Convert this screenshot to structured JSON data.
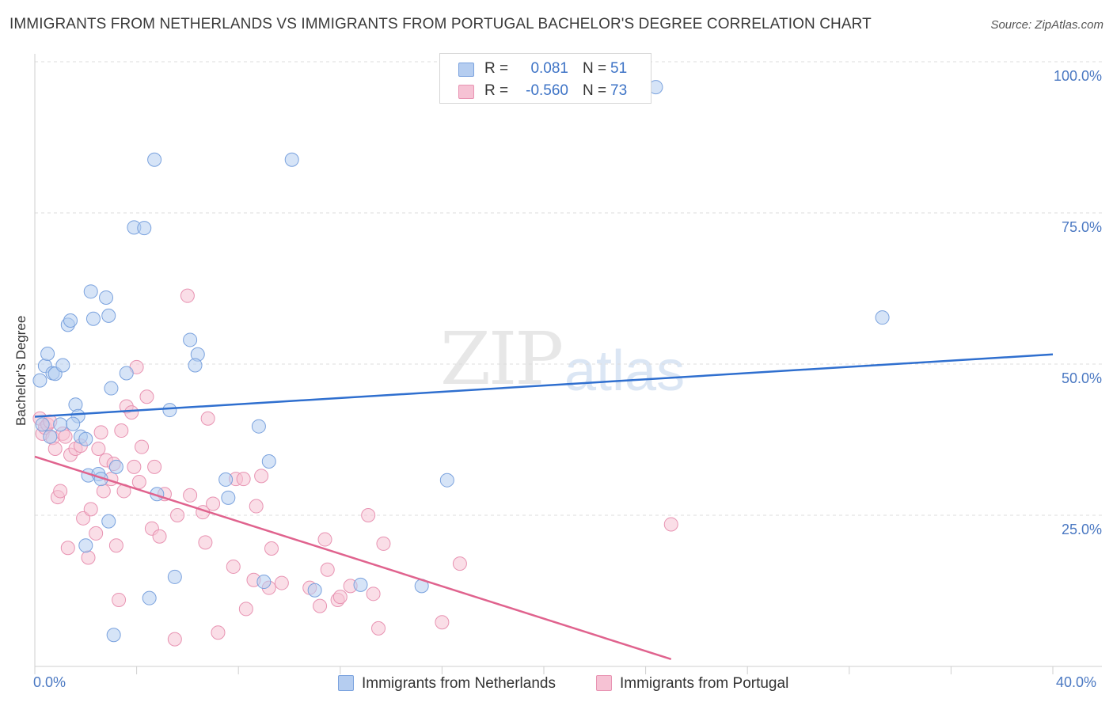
{
  "title": "IMMIGRANTS FROM NETHERLANDS VS IMMIGRANTS FROM PORTUGAL BACHELOR'S DEGREE CORRELATION CHART",
  "source": "Source: ZipAtlas.com",
  "watermark": {
    "zip": "ZIP",
    "atlas": "atlas"
  },
  "legend_top": {
    "rows": [
      {
        "r_label": "R =",
        "r_value": "0.081",
        "n_label": "N =",
        "n_value": "51"
      },
      {
        "r_label": "R =",
        "r_value": "-0.560",
        "n_label": "N =",
        "n_value": "73"
      }
    ]
  },
  "legend_bottom": {
    "items": [
      "Immigrants from Netherlands",
      "Immigrants from Portugal"
    ]
  },
  "colors": {
    "netherlands_fill": "#b5cdf0",
    "netherlands_stroke": "#7aa2de",
    "netherlands_line": "#2f6fcf",
    "portugal_fill": "#f6c2d4",
    "portugal_stroke": "#e893b2",
    "portugal_line": "#e0638e",
    "tick_text": "#4a78c2"
  },
  "chart_data": {
    "type": "scatter",
    "ylabel": "Bachelor's Degree",
    "xlim": [
      0,
      40
    ],
    "ylim": [
      0,
      100
    ],
    "x_ticks": [
      "0.0%",
      "40.0%"
    ],
    "y_ticks": [
      {
        "value": 100,
        "label": "100.0%"
      },
      {
        "value": 75,
        "label": "75.0%"
      },
      {
        "value": 50,
        "label": "50.0%"
      },
      {
        "value": 25,
        "label": "25.0%"
      }
    ],
    "grid": true,
    "series": [
      {
        "name": "Immigrants from Netherlands",
        "trend": {
          "x": [
            0,
            40
          ],
          "y": [
            41.3,
            51.6
          ]
        },
        "points": [
          [
            0.2,
            47.3
          ],
          [
            0.4,
            49.7
          ],
          [
            0.5,
            51.7
          ],
          [
            0.7,
            48.5
          ],
          [
            0.8,
            48.4
          ],
          [
            1.1,
            49.8
          ],
          [
            1.3,
            56.5
          ],
          [
            1.4,
            57.2
          ],
          [
            1.6,
            43.3
          ],
          [
            1.7,
            41.4
          ],
          [
            1.8,
            38.0
          ],
          [
            2.0,
            37.6
          ],
          [
            2.1,
            31.6
          ],
          [
            2.2,
            62.0
          ],
          [
            2.3,
            57.5
          ],
          [
            2.5,
            31.8
          ],
          [
            2.6,
            31.0
          ],
          [
            2.8,
            61.0
          ],
          [
            2.9,
            58.0
          ],
          [
            3.0,
            46.0
          ],
          [
            3.2,
            33.0
          ],
          [
            3.6,
            48.5
          ],
          [
            3.9,
            72.6
          ],
          [
            4.3,
            72.5
          ],
          [
            4.7,
            83.8
          ],
          [
            4.8,
            28.5
          ],
          [
            5.3,
            42.4
          ],
          [
            6.1,
            54.0
          ],
          [
            6.4,
            51.6
          ],
          [
            6.3,
            49.8
          ],
          [
            7.5,
            30.9
          ],
          [
            7.6,
            27.9
          ],
          [
            8.8,
            39.7
          ],
          [
            9.2,
            33.9
          ],
          [
            10.1,
            83.8
          ],
          [
            11.0,
            12.6
          ],
          [
            12.8,
            13.5
          ],
          [
            15.2,
            13.3
          ],
          [
            16.2,
            30.8
          ],
          [
            24.4,
            95.8
          ],
          [
            33.3,
            57.7
          ],
          [
            0.3,
            40.0
          ],
          [
            1.0,
            40.0
          ],
          [
            1.5,
            40.1
          ],
          [
            2.9,
            24.0
          ],
          [
            4.5,
            11.3
          ],
          [
            5.5,
            14.8
          ],
          [
            3.1,
            5.2
          ],
          [
            9.0,
            14.0
          ],
          [
            0.6,
            38.0
          ],
          [
            2.0,
            20.0
          ]
        ]
      },
      {
        "name": "Immigrants from Portugal",
        "trend": {
          "x": [
            0,
            25
          ],
          "y": [
            34.7,
            1.2
          ]
        },
        "points": [
          [
            0.2,
            41.0
          ],
          [
            0.3,
            38.5
          ],
          [
            0.4,
            39.5
          ],
          [
            0.5,
            40.0
          ],
          [
            0.7,
            37.8
          ],
          [
            0.8,
            36.0
          ],
          [
            0.9,
            28.0
          ],
          [
            1.0,
            29.0
          ],
          [
            1.1,
            38.5
          ],
          [
            1.3,
            19.6
          ],
          [
            1.4,
            35.0
          ],
          [
            1.6,
            36.0
          ],
          [
            1.8,
            36.5
          ],
          [
            1.9,
            24.5
          ],
          [
            2.1,
            18.0
          ],
          [
            2.2,
            26.0
          ],
          [
            2.4,
            22.0
          ],
          [
            2.5,
            36.0
          ],
          [
            2.6,
            38.7
          ],
          [
            2.7,
            29.0
          ],
          [
            2.8,
            34.1
          ],
          [
            3.0,
            31.0
          ],
          [
            3.1,
            33.5
          ],
          [
            3.2,
            20.0
          ],
          [
            3.3,
            11.0
          ],
          [
            3.4,
            39.0
          ],
          [
            3.5,
            29.0
          ],
          [
            3.6,
            43.0
          ],
          [
            3.8,
            42.0
          ],
          [
            3.9,
            33.0
          ],
          [
            4.1,
            30.5
          ],
          [
            4.2,
            36.3
          ],
          [
            4.4,
            44.6
          ],
          [
            4.6,
            22.8
          ],
          [
            4.7,
            33.0
          ],
          [
            4.9,
            21.5
          ],
          [
            5.1,
            28.5
          ],
          [
            5.5,
            4.5
          ],
          [
            5.6,
            25.0
          ],
          [
            6.0,
            61.3
          ],
          [
            6.1,
            28.3
          ],
          [
            6.6,
            25.5
          ],
          [
            6.7,
            20.5
          ],
          [
            6.8,
            41.0
          ],
          [
            7.0,
            26.9
          ],
          [
            7.2,
            5.6
          ],
          [
            7.8,
            16.5
          ],
          [
            7.9,
            31.0
          ],
          [
            8.2,
            31.0
          ],
          [
            8.3,
            9.5
          ],
          [
            8.6,
            14.3
          ],
          [
            8.7,
            26.5
          ],
          [
            8.9,
            31.5
          ],
          [
            9.2,
            13.0
          ],
          [
            9.3,
            19.5
          ],
          [
            9.7,
            13.8
          ],
          [
            10.8,
            13.0
          ],
          [
            11.2,
            10.0
          ],
          [
            11.5,
            16.0
          ],
          [
            11.4,
            21.0
          ],
          [
            11.9,
            11.0
          ],
          [
            12.0,
            11.5
          ],
          [
            12.4,
            13.3
          ],
          [
            13.1,
            25.0
          ],
          [
            13.3,
            12.0
          ],
          [
            13.5,
            6.3
          ],
          [
            13.7,
            20.3
          ],
          [
            16.0,
            7.3
          ],
          [
            16.7,
            17.0
          ],
          [
            25.0,
            23.5
          ],
          [
            4.0,
            49.5
          ],
          [
            0.6,
            40.5
          ],
          [
            1.2,
            38.0
          ]
        ]
      }
    ]
  }
}
